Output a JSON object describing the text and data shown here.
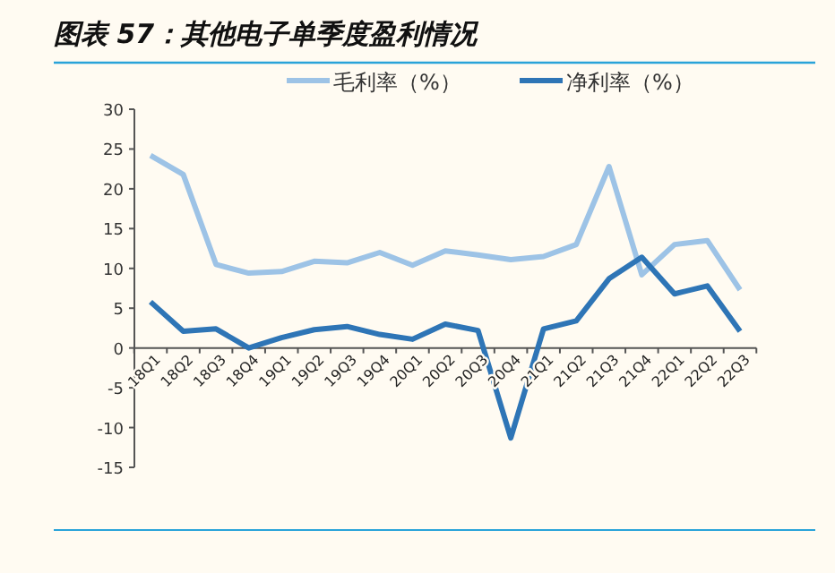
{
  "chart_data": {
    "type": "line",
    "title": "图表 57：其他电子单季度盈利情况",
    "categories": [
      "18Q1",
      "18Q2",
      "18Q3",
      "18Q4",
      "19Q1",
      "19Q2",
      "19Q3",
      "19Q4",
      "20Q1",
      "20Q2",
      "20Q3",
      "20Q4",
      "21Q1",
      "21Q2",
      "21Q3",
      "21Q4",
      "22Q1",
      "22Q2",
      "22Q3"
    ],
    "series": [
      {
        "name": "毛利率（%）",
        "color": "#9dc3e6",
        "values": [
          24.2,
          21.8,
          10.5,
          9.4,
          9.6,
          10.9,
          10.7,
          12.0,
          10.4,
          12.2,
          11.7,
          11.1,
          11.5,
          13.0,
          22.8,
          9.2,
          13.0,
          13.5,
          7.3
        ]
      },
      {
        "name": "净利率（%）",
        "color": "#2e75b6",
        "values": [
          5.8,
          2.1,
          2.4,
          0.0,
          1.3,
          2.3,
          2.7,
          1.7,
          1.1,
          3.0,
          2.2,
          -11.3,
          2.4,
          3.4,
          8.7,
          11.4,
          6.8,
          7.8,
          2.1
        ]
      }
    ],
    "ylim": [
      -15,
      30
    ],
    "yticks": [
      -15,
      -10,
      -5,
      0,
      5,
      10,
      15,
      20,
      25,
      30
    ],
    "legend": "top",
    "grid": false,
    "marker": "none",
    "line_style": "solid"
  }
}
